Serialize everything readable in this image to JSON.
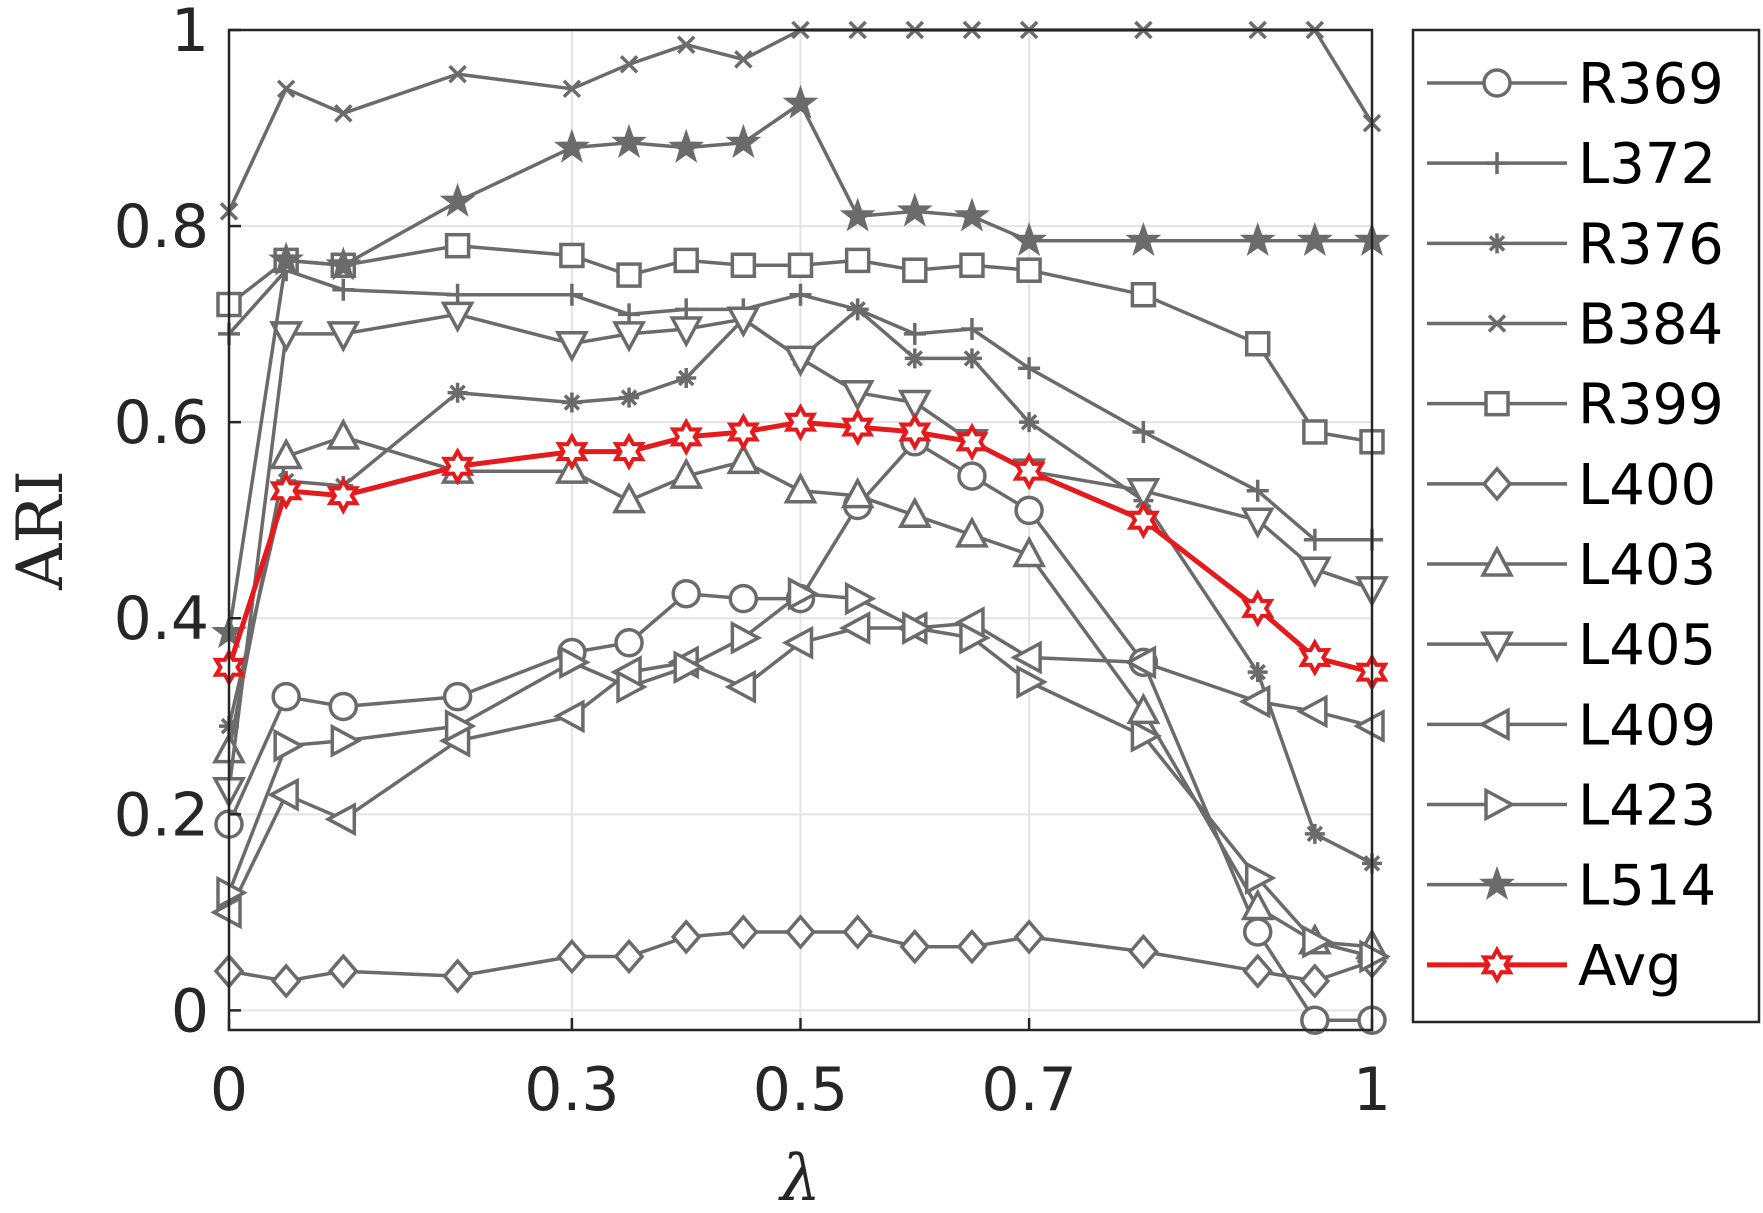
{
  "chart_data": {
    "type": "line",
    "xlabel": "λ",
    "ylabel": "ARI",
    "xlim": [
      0,
      1
    ],
    "ylim": [
      -0.02,
      1
    ],
    "xticks": [
      0,
      0.3,
      0.5,
      0.7,
      1
    ],
    "xtick_labels": [
      "0",
      "0.3",
      "0.5",
      "0.7",
      "1"
    ],
    "yticks": [
      0,
      0.2,
      0.4,
      0.6,
      0.8,
      1
    ],
    "ytick_labels": [
      "0",
      "0.2",
      "0.4",
      "0.6",
      "0.8",
      "1"
    ],
    "grid": true,
    "legend_position": "outside-right",
    "x": [
      0,
      0.05,
      0.1,
      0.2,
      0.3,
      0.35,
      0.4,
      0.45,
      0.5,
      0.55,
      0.6,
      0.65,
      0.7,
      0.8,
      0.9,
      0.95,
      1
    ],
    "series": [
      {
        "name": "R369",
        "marker": "circle",
        "color": "#6b6b6b",
        "values": [
          0.19,
          0.32,
          0.31,
          0.32,
          0.365,
          0.375,
          0.425,
          0.42,
          0.42,
          0.515,
          0.58,
          0.545,
          0.51,
          0.355,
          0.08,
          -0.01,
          -0.01
        ]
      },
      {
        "name": "L372",
        "marker": "plus",
        "color": "#6b6b6b",
        "values": [
          0.69,
          0.755,
          0.735,
          0.73,
          0.73,
          0.71,
          0.715,
          0.715,
          0.73,
          0.715,
          0.69,
          0.695,
          0.655,
          0.59,
          0.53,
          0.48,
          0.48
        ]
      },
      {
        "name": "R376",
        "marker": "asterisk",
        "color": "#6b6b6b",
        "values": [
          0.29,
          0.54,
          0.535,
          0.63,
          0.62,
          0.625,
          0.645,
          0.705,
          0.665,
          0.715,
          0.665,
          0.665,
          0.6,
          0.52,
          0.345,
          0.18,
          0.15
        ]
      },
      {
        "name": "B384",
        "marker": "x",
        "color": "#6b6b6b",
        "values": [
          0.815,
          0.94,
          0.915,
          0.955,
          0.94,
          0.965,
          0.985,
          0.97,
          1.0,
          1.0,
          1.0,
          1.0,
          1.0,
          1.0,
          1.0,
          1.0,
          0.905
        ]
      },
      {
        "name": "R399",
        "marker": "square",
        "color": "#6b6b6b",
        "values": [
          0.72,
          0.765,
          0.76,
          0.78,
          0.77,
          0.75,
          0.765,
          0.76,
          0.76,
          0.765,
          0.755,
          0.76,
          0.755,
          0.73,
          0.68,
          0.59,
          0.58
        ]
      },
      {
        "name": "L400",
        "marker": "diamond",
        "color": "#6b6b6b",
        "values": [
          0.04,
          0.03,
          0.04,
          0.035,
          0.055,
          0.055,
          0.075,
          0.08,
          0.08,
          0.08,
          0.065,
          0.065,
          0.075,
          0.06,
          0.04,
          0.03,
          0.05
        ]
      },
      {
        "name": "L403",
        "marker": "triangle-up",
        "color": "#6b6b6b",
        "values": [
          0.265,
          0.565,
          0.585,
          0.55,
          0.55,
          0.52,
          0.545,
          0.56,
          0.53,
          0.525,
          0.505,
          0.485,
          0.465,
          0.305,
          0.105,
          0.07,
          0.065
        ]
      },
      {
        "name": "L405",
        "marker": "triangle-down",
        "color": "#6b6b6b",
        "values": [
          0.225,
          0.69,
          0.69,
          0.71,
          0.68,
          0.69,
          0.695,
          0.705,
          0.665,
          0.63,
          0.62,
          0.58,
          0.55,
          0.53,
          0.5,
          0.45,
          0.43
        ]
      },
      {
        "name": "L409",
        "marker": "triangle-left",
        "color": "#6b6b6b",
        "values": [
          0.1,
          0.22,
          0.195,
          0.275,
          0.3,
          0.345,
          0.355,
          0.33,
          0.375,
          0.39,
          0.39,
          0.395,
          0.36,
          0.355,
          0.315,
          0.305,
          0.29
        ]
      },
      {
        "name": "L423",
        "marker": "triangle-right",
        "color": "#6b6b6b",
        "values": [
          0.12,
          0.27,
          0.275,
          0.29,
          0.355,
          0.33,
          0.35,
          0.38,
          0.425,
          0.42,
          0.39,
          0.38,
          0.335,
          0.28,
          0.135,
          0.07,
          0.055
        ]
      },
      {
        "name": "L514",
        "marker": "pentagram",
        "color": "#6b6b6b",
        "values": [
          0.385,
          0.765,
          0.76,
          0.825,
          0.88,
          0.885,
          0.88,
          0.885,
          0.925,
          0.81,
          0.815,
          0.81,
          0.785,
          0.785,
          0.785,
          0.785,
          0.785
        ]
      },
      {
        "name": "Avg",
        "marker": "hexagram",
        "color": "#e41a1c",
        "values": [
          0.35,
          0.53,
          0.525,
          0.555,
          0.57,
          0.57,
          0.585,
          0.59,
          0.6,
          0.595,
          0.59,
          0.58,
          0.55,
          0.5,
          0.41,
          0.36,
          0.345
        ]
      }
    ]
  }
}
